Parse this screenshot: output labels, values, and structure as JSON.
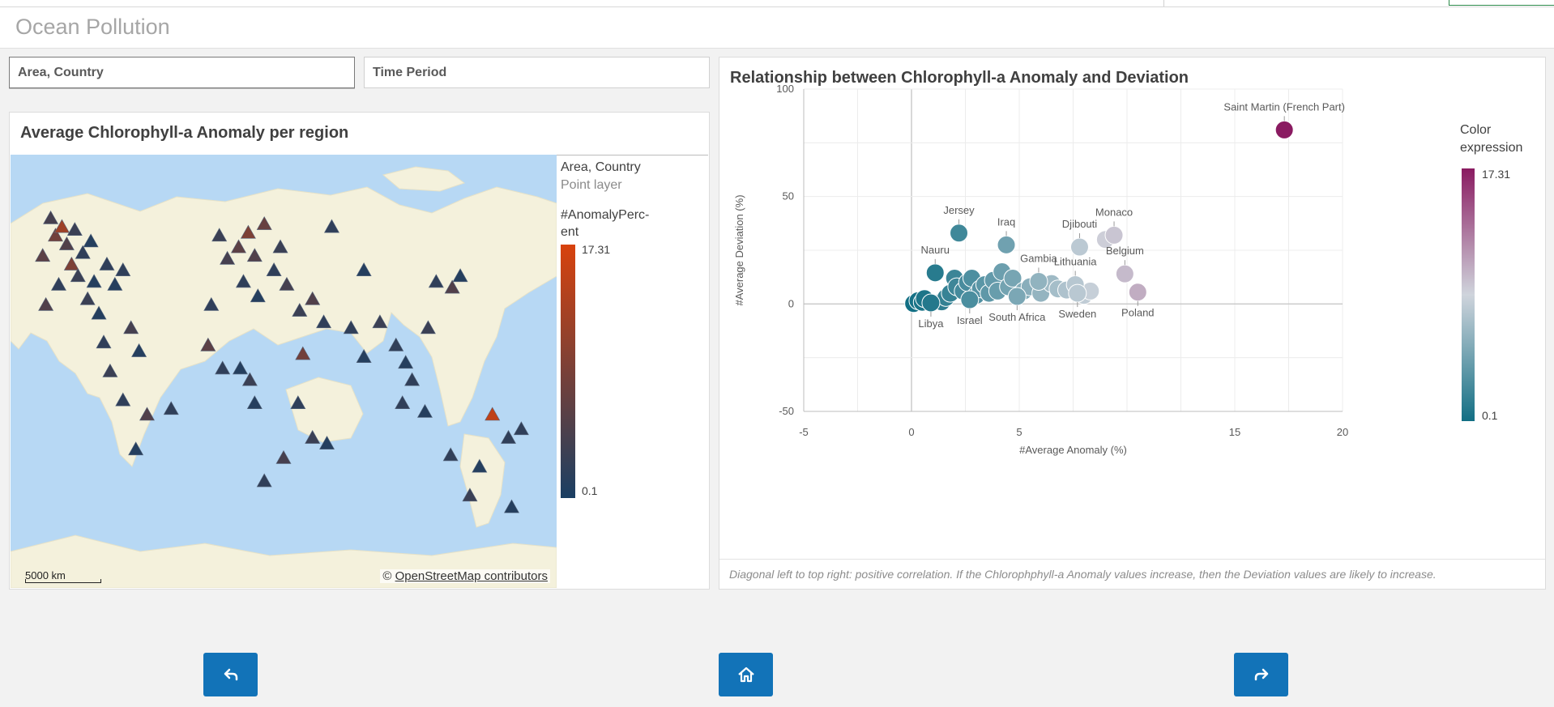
{
  "app": {
    "title": "Ocean Pollution"
  },
  "filters": [
    {
      "label": "Area, Country"
    },
    {
      "label": "Time Period"
    }
  ],
  "map_panel": {
    "title": "Average Chlorophyll-a Anomaly per region",
    "legend_layer": "Area, Country",
    "legend_layer_type": "Point layer",
    "legend_measure_line1": "#AnomalyPerc-",
    "legend_measure_line2": "ent",
    "legend_max": "17.31",
    "legend_min": "0.1",
    "legend_color_low": "#1a3f63",
    "legend_color_high": "#d8420d",
    "scale_label": "5000 km",
    "attribution_prefix": "©",
    "attribution_link": "OpenStreetMap contributors"
  },
  "scatter_panel": {
    "title": "Relationship between Chlorophyll-a Anomaly and Deviation",
    "legend_title_line1": "Color",
    "legend_title_line2": "expression",
    "legend_max": "17.31",
    "legend_min": "0.1",
    "footnote": "Diagonal left to top right: positive correlation. If the Chlorophphyll-a Anomaly values increase, then the Deviation values are likely to increase."
  },
  "chart_data": {
    "type": "scatter",
    "title": "Relationship between Chlorophyll-a Anomaly and Deviation",
    "xlabel": "#Average Anomaly (%)",
    "ylabel": "#Average Deviation (%)",
    "xlim": [
      -5,
      20
    ],
    "ylim": [
      -50,
      100
    ],
    "xticks": [
      "-5",
      "0",
      "5",
      "15",
      "20"
    ],
    "yticks": [
      "100",
      "50",
      "0",
      "-50"
    ],
    "grid": true,
    "color_scale": {
      "low": "#126f84",
      "mid": "#cfd4dc",
      "high": "#8a1b61",
      "min": 0.1,
      "max": 17.31
    },
    "labeled_points": [
      {
        "name": "Saint Martin (French Part)",
        "x": 17.3,
        "y": 81
      },
      {
        "name": "Jersey",
        "x": 2.2,
        "y": 33
      },
      {
        "name": "Iraq",
        "x": 4.4,
        "y": 27.5
      },
      {
        "name": "Djibouti",
        "x": 7.8,
        "y": 26.5
      },
      {
        "name": "Monaco",
        "x": 9.4,
        "y": 32
      },
      {
        "name": "Nauru",
        "x": 1.1,
        "y": 14.5
      },
      {
        "name": "Gambia",
        "x": 5.9,
        "y": 10.5
      },
      {
        "name": "Lithuania",
        "x": 7.6,
        "y": 9
      },
      {
        "name": "Belgium",
        "x": 9.9,
        "y": 14
      },
      {
        "name": "Poland",
        "x": 10.5,
        "y": 5.5
      },
      {
        "name": "Sweden",
        "x": 7.7,
        "y": 5
      },
      {
        "name": "South Africa",
        "x": 4.9,
        "y": 3.5
      },
      {
        "name": "Israel",
        "x": 2.7,
        "y": 2
      },
      {
        "name": "Libya",
        "x": 0.9,
        "y": 0.5
      }
    ],
    "other_points": [
      {
        "x": 0.1,
        "y": 0.2
      },
      {
        "x": 0.3,
        "y": 1.5
      },
      {
        "x": 0.5,
        "y": 0.8
      },
      {
        "x": 0.6,
        "y": 2.5
      },
      {
        "x": 1.4,
        "y": 1
      },
      {
        "x": 1.6,
        "y": 3
      },
      {
        "x": 1.8,
        "y": 5
      },
      {
        "x": 2.0,
        "y": 12
      },
      {
        "x": 2.1,
        "y": 8
      },
      {
        "x": 2.4,
        "y": 6
      },
      {
        "x": 2.6,
        "y": 10
      },
      {
        "x": 2.8,
        "y": 12
      },
      {
        "x": 3.0,
        "y": 4
      },
      {
        "x": 3.2,
        "y": 7
      },
      {
        "x": 3.4,
        "y": 9
      },
      {
        "x": 3.6,
        "y": 5
      },
      {
        "x": 3.8,
        "y": 11
      },
      {
        "x": 4.0,
        "y": 6
      },
      {
        "x": 4.2,
        "y": 15
      },
      {
        "x": 4.5,
        "y": 8
      },
      {
        "x": 4.7,
        "y": 12
      },
      {
        "x": 5.2,
        "y": 6
      },
      {
        "x": 5.5,
        "y": 8
      },
      {
        "x": 6.0,
        "y": 5
      },
      {
        "x": 6.5,
        "y": 9.5
      },
      {
        "x": 6.8,
        "y": 7
      },
      {
        "x": 7.2,
        "y": 6.5
      },
      {
        "x": 8.0,
        "y": 4
      },
      {
        "x": 8.3,
        "y": 6
      },
      {
        "x": 9.0,
        "y": 30
      }
    ]
  },
  "nav": {
    "back_icon": "back-arrow-icon",
    "home_icon": "home-icon",
    "forward_icon": "forward-arrow-icon"
  },
  "map_markers": {
    "default_color": "#243b55",
    "points": [
      {
        "lon": -115,
        "lat": 58,
        "v": 4
      },
      {
        "lon": -112,
        "lat": 52,
        "v": 8
      },
      {
        "lon": -108,
        "lat": 55,
        "v": 12
      },
      {
        "lon": -105,
        "lat": 49,
        "v": 5
      },
      {
        "lon": -100,
        "lat": 54,
        "v": 3
      },
      {
        "lon": -120,
        "lat": 45,
        "v": 6
      },
      {
        "lon": -95,
        "lat": 46,
        "v": 2
      },
      {
        "lon": -90,
        "lat": 50,
        "v": 1
      },
      {
        "lon": -102,
        "lat": 42,
        "v": 9
      },
      {
        "lon": -98,
        "lat": 38,
        "v": 3
      },
      {
        "lon": -110,
        "lat": 35,
        "v": 2
      },
      {
        "lon": -88,
        "lat": 36,
        "v": 1
      },
      {
        "lon": -92,
        "lat": 30,
        "v": 3
      },
      {
        "lon": -80,
        "lat": 42,
        "v": 2
      },
      {
        "lon": -85,
        "lat": 25,
        "v": 1
      },
      {
        "lon": -118,
        "lat": 28,
        "v": 5
      },
      {
        "lon": -75,
        "lat": 35,
        "v": 1
      },
      {
        "lon": -70,
        "lat": 40,
        "v": 2
      },
      {
        "lon": -65,
        "lat": 20,
        "v": 4
      },
      {
        "lon": -82,
        "lat": 15,
        "v": 2
      },
      {
        "lon": -60,
        "lat": 12,
        "v": 1
      },
      {
        "lon": -78,
        "lat": 5,
        "v": 3
      },
      {
        "lon": -70,
        "lat": -5,
        "v": 2
      },
      {
        "lon": -55,
        "lat": -10,
        "v": 5
      },
      {
        "lon": -62,
        "lat": -22,
        "v": 1
      },
      {
        "lon": -40,
        "lat": -8,
        "v": 2
      },
      {
        "lon": -10,
        "lat": 52,
        "v": 3
      },
      {
        "lon": -5,
        "lat": 44,
        "v": 4
      },
      {
        "lon": 2,
        "lat": 48,
        "v": 6
      },
      {
        "lon": 8,
        "lat": 53,
        "v": 9
      },
      {
        "lon": 12,
        "lat": 45,
        "v": 5
      },
      {
        "lon": 18,
        "lat": 56,
        "v": 7
      },
      {
        "lon": 24,
        "lat": 40,
        "v": 2
      },
      {
        "lon": 28,
        "lat": 48,
        "v": 3
      },
      {
        "lon": 32,
        "lat": 35,
        "v": 4
      },
      {
        "lon": 5,
        "lat": 36,
        "v": 2
      },
      {
        "lon": 14,
        "lat": 31,
        "v": 1
      },
      {
        "lon": -15,
        "lat": 28,
        "v": 2
      },
      {
        "lon": 40,
        "lat": 26,
        "v": 3
      },
      {
        "lon": 48,
        "lat": 30,
        "v": 5
      },
      {
        "lon": 55,
        "lat": 22,
        "v": 2
      },
      {
        "lon": -17,
        "lat": 14,
        "v": 6
      },
      {
        "lon": -8,
        "lat": 6,
        "v": 2
      },
      {
        "lon": 3,
        "lat": 6,
        "v": 1
      },
      {
        "lon": 9,
        "lat": 2,
        "v": 3
      },
      {
        "lon": 42,
        "lat": 11,
        "v": 8
      },
      {
        "lon": 39,
        "lat": -6,
        "v": 2
      },
      {
        "lon": 12,
        "lat": -6,
        "v": 1
      },
      {
        "lon": 48,
        "lat": -18,
        "v": 3
      },
      {
        "lon": 30,
        "lat": -25,
        "v": 4
      },
      {
        "lon": 18,
        "lat": -33,
        "v": 2
      },
      {
        "lon": 57,
        "lat": -20,
        "v": 1
      },
      {
        "lon": 72,
        "lat": 20,
        "v": 2
      },
      {
        "lon": 80,
        "lat": 10,
        "v": 1
      },
      {
        "lon": 90,
        "lat": 22,
        "v": 3
      },
      {
        "lon": 100,
        "lat": 14,
        "v": 2
      },
      {
        "lon": 106,
        "lat": 8,
        "v": 1
      },
      {
        "lon": 110,
        "lat": 2,
        "v": 2
      },
      {
        "lon": 120,
        "lat": 20,
        "v": 3
      },
      {
        "lon": 125,
        "lat": 36,
        "v": 2
      },
      {
        "lon": 135,
        "lat": 34,
        "v": 5
      },
      {
        "lon": 140,
        "lat": 38,
        "v": 1
      },
      {
        "lon": 104,
        "lat": -6,
        "v": 2
      },
      {
        "lon": 118,
        "lat": -9,
        "v": 1
      },
      {
        "lon": 134,
        "lat": -24,
        "v": 2
      },
      {
        "lon": 146,
        "lat": -38,
        "v": 3
      },
      {
        "lon": 152,
        "lat": -28,
        "v": 1
      },
      {
        "lon": 160,
        "lat": -10,
        "v": 15
      },
      {
        "lon": 170,
        "lat": -18,
        "v": 2
      },
      {
        "lon": 172,
        "lat": -42,
        "v": 1
      },
      {
        "lon": 178,
        "lat": -15,
        "v": 2
      },
      {
        "lon": -170,
        "lat": -14,
        "v": 3
      },
      {
        "lon": -160,
        "lat": -20,
        "v": 1
      },
      {
        "lon": 60,
        "lat": 55,
        "v": 2
      },
      {
        "lon": 80,
        "lat": 40,
        "v": 1
      }
    ]
  }
}
